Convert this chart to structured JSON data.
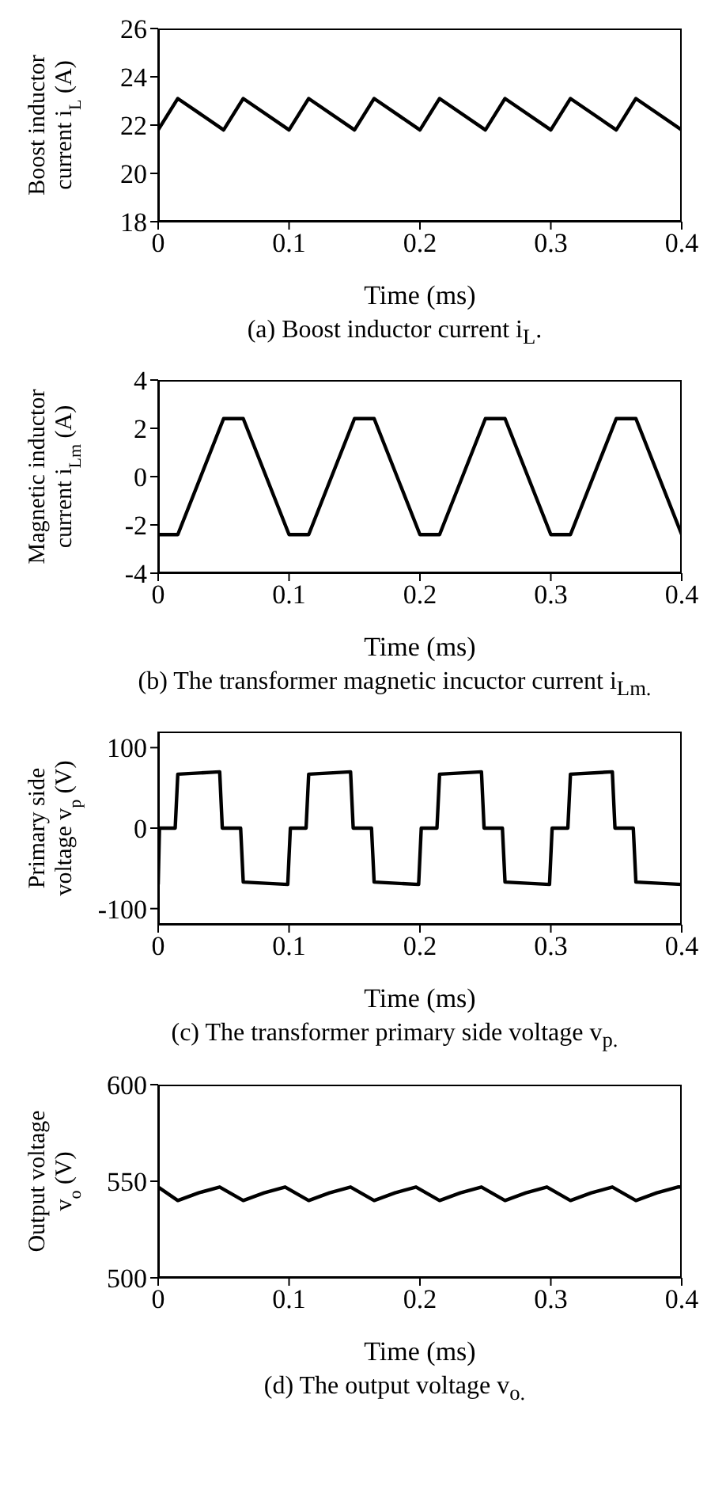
{
  "chart_data": [
    {
      "type": "line",
      "xlabel": "Time (ms)",
      "ylabel": "Boost inductor current i$_{L}$ (A)",
      "annotations": [
        "(a) Boost inductor current i$_{L}$."
      ],
      "xlim": [
        0,
        0.4
      ],
      "xticks": [
        0,
        0.1,
        0.2,
        0.3,
        0.4
      ],
      "ylim": [
        18,
        26
      ],
      "yticks": [
        18,
        20,
        22,
        24,
        26
      ],
      "grid": false,
      "legend": false,
      "marker": "none",
      "line_style": "solid",
      "series": [
        {
          "color": "#000000",
          "x": [
            0,
            0.015,
            0.05,
            0.065,
            0.1,
            0.115,
            0.15,
            0.165,
            0.2,
            0.215,
            0.25,
            0.265,
            0.3,
            0.315,
            0.35,
            0.365,
            0.4
          ],
          "values": [
            21.8,
            23.1,
            21.8,
            23.1,
            21.8,
            23.1,
            21.8,
            23.1,
            21.8,
            23.1,
            21.8,
            23.1,
            21.8,
            23.1,
            21.8,
            23.1,
            21.8
          ]
        }
      ]
    },
    {
      "type": "line",
      "xlabel": "Time (ms)",
      "ylabel": "Magnetic inductor current i$_{Lm}$ (A)",
      "annotations": [
        "(b) The transformer magnetic incuctor current i$_{Lm.}$"
      ],
      "xlim": [
        0,
        0.4
      ],
      "xticks": [
        0,
        0.1,
        0.2,
        0.3,
        0.4
      ],
      "ylim": [
        -4,
        4
      ],
      "yticks": [
        -4,
        -2,
        0,
        2,
        4
      ],
      "grid": false,
      "legend": false,
      "marker": "none",
      "line_style": "solid",
      "series": [
        {
          "color": "#000000",
          "x": [
            0,
            0.015,
            0.05,
            0.065,
            0.1,
            0.115,
            0.15,
            0.165,
            0.2,
            0.215,
            0.25,
            0.265,
            0.3,
            0.315,
            0.35,
            0.365,
            0.4
          ],
          "values": [
            -2.4,
            -2.4,
            2.4,
            2.4,
            -2.4,
            -2.4,
            2.4,
            2.4,
            -2.4,
            -2.4,
            2.4,
            2.4,
            -2.4,
            -2.4,
            2.4,
            2.4,
            -2.4
          ]
        }
      ]
    },
    {
      "type": "line",
      "xlabel": "Time (ms)",
      "ylabel": "Primary side voltage v$_{p}$ (V)",
      "annotations": [
        "(c) The transformer primary side voltage v$_{p.}$"
      ],
      "xlim": [
        0,
        0.4
      ],
      "xticks": [
        0,
        0.1,
        0.2,
        0.3,
        0.4
      ],
      "ylim": [
        -120,
        120
      ],
      "yticks": [
        -100,
        0,
        100
      ],
      "grid": false,
      "legend": false,
      "marker": "none",
      "line_style": "solid",
      "series": [
        {
          "color": "#000000",
          "x": [
            0,
            0.001,
            0.013,
            0.015,
            0.047,
            0.049,
            0.063,
            0.065,
            0.099,
            0.101,
            0.113,
            0.115,
            0.147,
            0.149,
            0.163,
            0.165,
            0.199,
            0.201,
            0.213,
            0.215,
            0.247,
            0.249,
            0.263,
            0.265,
            0.299,
            0.301,
            0.313,
            0.315,
            0.347,
            0.349,
            0.363,
            0.365,
            0.4
          ],
          "values": [
            -70,
            0,
            0,
            67,
            70,
            0,
            0,
            -67,
            -70,
            0,
            0,
            67,
            70,
            0,
            0,
            -67,
            -70,
            0,
            0,
            67,
            70,
            0,
            0,
            -67,
            -70,
            0,
            0,
            67,
            70,
            0,
            0,
            -67,
            -70
          ]
        }
      ]
    },
    {
      "type": "line",
      "xlabel": "Time (ms)",
      "ylabel": "Output voltage v$_{o}$ (V)",
      "annotations": [
        "(d) The output voltage v$_{o.}$"
      ],
      "xlim": [
        0,
        0.4
      ],
      "xticks": [
        0,
        0.1,
        0.2,
        0.3,
        0.4
      ],
      "ylim": [
        500,
        600
      ],
      "yticks": [
        500,
        550,
        600
      ],
      "grid": false,
      "legend": false,
      "marker": "none",
      "line_style": "solid",
      "series": [
        {
          "color": "#000000",
          "x": [
            0,
            0.015,
            0.031,
            0.047,
            0.065,
            0.081,
            0.097,
            0.115,
            0.131,
            0.147,
            0.165,
            0.181,
            0.197,
            0.215,
            0.231,
            0.247,
            0.265,
            0.281,
            0.297,
            0.315,
            0.331,
            0.347,
            0.365,
            0.381,
            0.397,
            0.4
          ],
          "values": [
            547,
            540,
            544,
            547,
            540,
            544,
            547,
            540,
            544,
            547,
            540,
            544,
            547,
            540,
            544,
            547,
            540,
            544,
            547,
            540,
            544,
            547,
            540,
            544,
            547,
            547
          ]
        }
      ]
    }
  ]
}
